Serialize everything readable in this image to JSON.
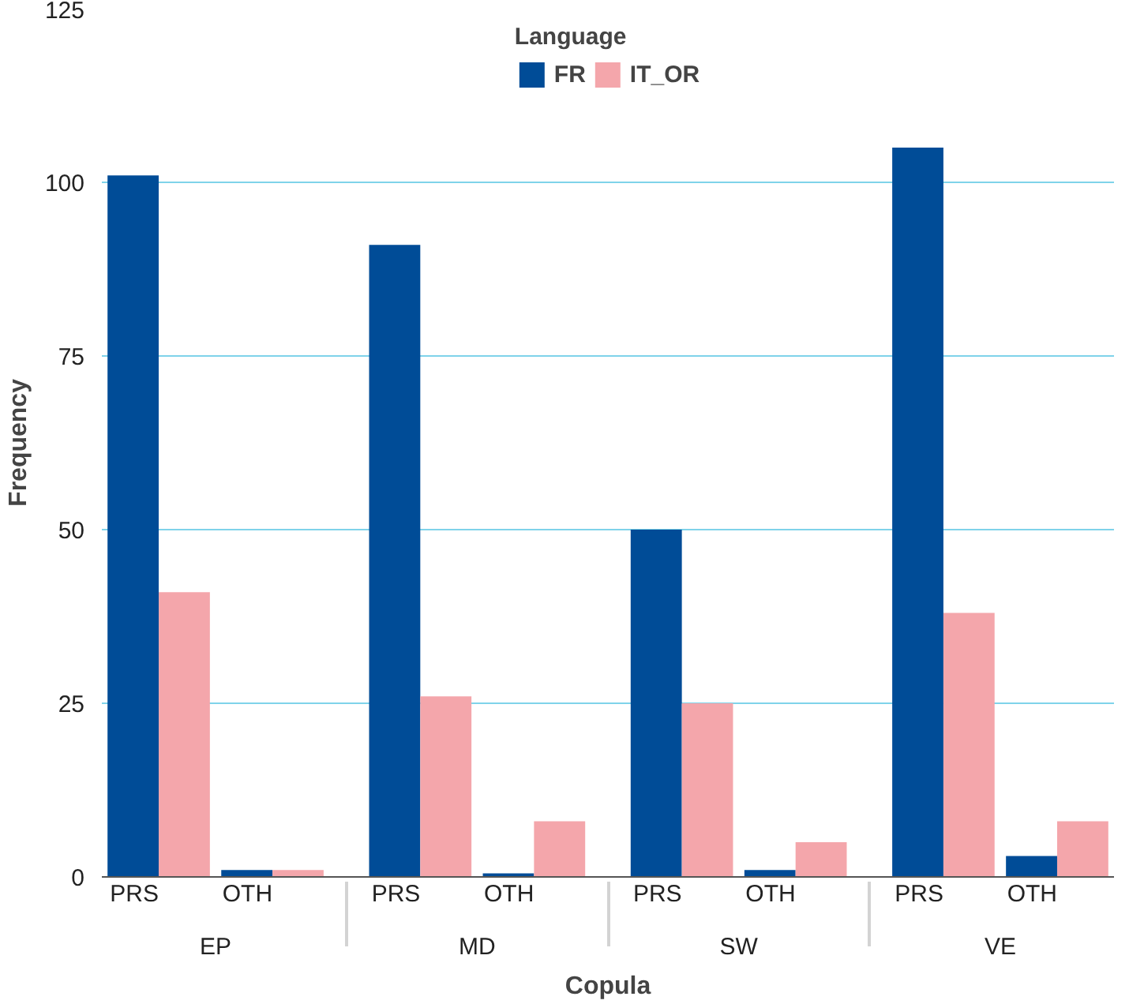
{
  "chart_data": {
    "type": "bar",
    "xlabel": "Copula",
    "ylabel": "Frequency",
    "legend_title": "Language",
    "categories": [
      "PRS",
      "OTH",
      "PRS",
      "OTH",
      "PRS",
      "OTH",
      "PRS",
      "OTH"
    ],
    "annotations": [
      "EP",
      "MD",
      "SW",
      "VE"
    ],
    "series": [
      {
        "name": "FR",
        "color": "#004c97",
        "values": [
          101,
          1,
          91,
          0.5,
          50,
          1,
          105,
          3
        ]
      },
      {
        "name": "IT_OR",
        "color": "#f4a6ab",
        "values": [
          41,
          1,
          26,
          8,
          25,
          5,
          38,
          8
        ]
      }
    ],
    "ylim": [
      0,
      125
    ],
    "yticks": [
      0,
      25,
      50,
      75,
      100,
      125
    ],
    "grid": "y",
    "legend": "top"
  }
}
